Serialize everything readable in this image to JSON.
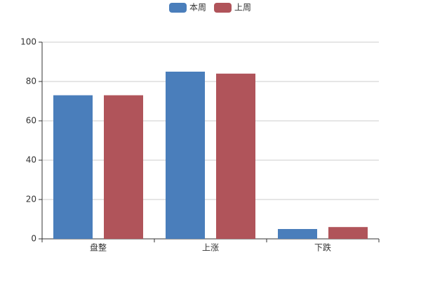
{
  "chart_data": {
    "type": "bar",
    "categories": [
      "盘整",
      "上涨",
      "下跌"
    ],
    "series": [
      {
        "name": "本周",
        "color": "#4a7ebb",
        "values": [
          73,
          85,
          5
        ]
      },
      {
        "name": "上周",
        "color": "#b0545a",
        "values": [
          73,
          84,
          6
        ]
      }
    ],
    "ylim": [
      0,
      100
    ],
    "yticks": [
      0,
      20,
      40,
      60,
      80,
      100
    ],
    "grid": true,
    "legend": "top"
  }
}
